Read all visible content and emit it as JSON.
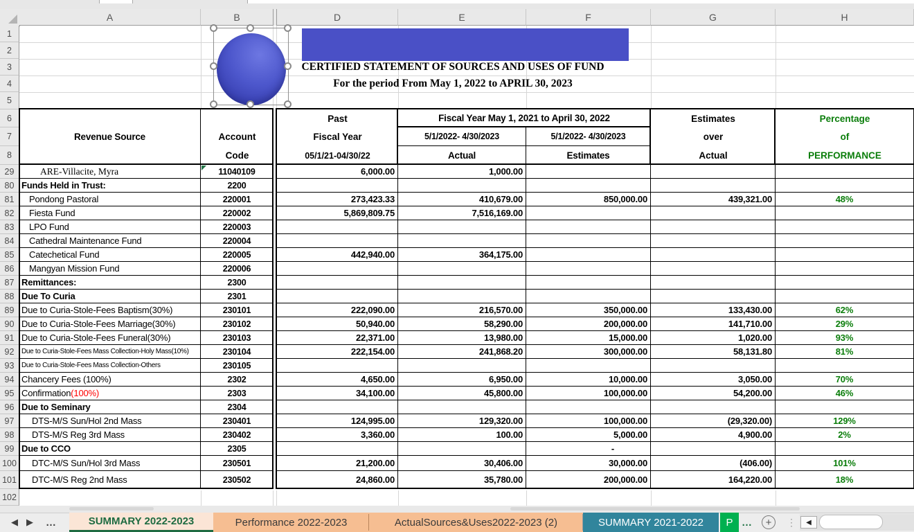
{
  "columns": [
    "A",
    "B",
    "D",
    "E",
    "F",
    "G",
    "H"
  ],
  "row_numbers": [
    "1",
    "2",
    "3",
    "4",
    "5",
    "6",
    "7",
    "8",
    "29",
    "80",
    "81",
    "82",
    "83",
    "84",
    "85",
    "86",
    "87",
    "88",
    "89",
    "90",
    "91",
    "92",
    "93",
    "94",
    "95",
    "96",
    "97",
    "98",
    "99",
    "100",
    "101",
    "102"
  ],
  "title": {
    "line1": "CERTIFIED STATEMENT OF SOURCES AND USES OF FUND",
    "line2": "For the period From May 1, 2022 to APRIL 30, 2023"
  },
  "table_header": {
    "revenue_source": "Revenue Source",
    "account": "Account",
    "code": "Code",
    "past": "Past",
    "fiscal_year": "Fiscal Year",
    "past_range": "05/1/21-04/30/22",
    "fy_span": "Fiscal Year  May 1, 2021 to April 30, 2022",
    "e_range": "5/1/2022- 4/30/2023",
    "e_label": "Actual",
    "f_range": "5/1/2022- 4/30/2023",
    "f_label": "Estimates",
    "g1": "Estimates",
    "g2": "over",
    "g3": "Actual",
    "h1": "Percentage",
    "h2": "of",
    "h3": "PERFORMANCE"
  },
  "rows": [
    {
      "n": "29",
      "name": "ARE-Villacite, Myra",
      "code": "11040109",
      "past": "6,000.00",
      "actual": "1,000.00",
      "style": "serif",
      "error_marker": true
    },
    {
      "n": "80",
      "name": "Funds Held in Trust:",
      "code": "2200",
      "style": "bold"
    },
    {
      "n": "81",
      "name": "Pondong Pastoral",
      "code": "220001",
      "past": "273,423.33",
      "actual": "410,679.00",
      "estimates": "850,000.00",
      "eoa": "439,321.00",
      "pct": "48%",
      "style": "indent"
    },
    {
      "n": "82",
      "name": "Fiesta Fund",
      "code": "220002",
      "past": "5,869,809.75",
      "actual": "7,516,169.00",
      "style": "indent"
    },
    {
      "n": "83",
      "name": "LPO Fund",
      "code": "220003",
      "style": "indent"
    },
    {
      "n": "84",
      "name": "Cathedral Maintenance Fund",
      "code": "220004",
      "style": "indent"
    },
    {
      "n": "85",
      "name": "Catechetical Fund",
      "code": "220005",
      "past": "442,940.00",
      "actual": "364,175.00",
      "style": "indent"
    },
    {
      "n": "86",
      "name": "Mangyan Mission Fund",
      "code": "220006",
      "style": "indent"
    },
    {
      "n": "87",
      "name": "Remittances:",
      "code": "2300",
      "style": "bold"
    },
    {
      "n": "88",
      "name": "Due To Curia",
      "code": "2301",
      "style": "bold"
    },
    {
      "n": "89",
      "name": "Due to Curia-Stole-Fees Baptism(30%)",
      "code": "230101",
      "past": "222,090.00",
      "actual": "216,570.00",
      "estimates": "350,000.00",
      "eoa": "133,430.00",
      "pct": "62%"
    },
    {
      "n": "90",
      "name": "Due to Curia-Stole-Fees Marriage(30%)",
      "code": "230102",
      "past": "50,940.00",
      "actual": "58,290.00",
      "estimates": "200,000.00",
      "eoa": "141,710.00",
      "pct": "29%"
    },
    {
      "n": "91",
      "name": "Due to Curia-Stole-Fees Funeral(30%)",
      "code": "230103",
      "past": "22,371.00",
      "actual": "13,980.00",
      "estimates": "15,000.00",
      "eoa": "1,020.00",
      "pct": "93%"
    },
    {
      "n": "92",
      "name": "Due to Curia-Stole-Fees Mass Collection-Holy Mass(10%)",
      "code": "230104",
      "past": "222,154.00",
      "actual": "241,868.20",
      "estimates": "300,000.00",
      "eoa": "58,131.80",
      "pct": "81%",
      "style": "small"
    },
    {
      "n": "93",
      "name": "Due to Curia-Stole-Fees Mass Collection-Others",
      "code": "230105",
      "style": "small"
    },
    {
      "n": "94",
      "name": "Chancery Fees (100%)",
      "code": "2302",
      "past": "4,650.00",
      "actual": "6,950.00",
      "estimates": "10,000.00",
      "eoa": "3,050.00",
      "pct": "70%"
    },
    {
      "n": "95",
      "name": "Confirmation ",
      "name_red": "(100%)",
      "code": "2303",
      "past": "34,100.00",
      "actual": "45,800.00",
      "estimates": "100,000.00",
      "eoa": "54,200.00",
      "pct": "46%"
    },
    {
      "n": "96",
      "name": "Due to Seminary",
      "code": "2304",
      "style": "bold"
    },
    {
      "n": "97",
      "name": "DTS-M/S Sun/Hol 2nd Mass",
      "code": "230401",
      "past": "124,995.00",
      "actual": "129,320.00",
      "estimates": "100,000.00",
      "eoa": "(29,320.00)",
      "pct": "129%",
      "style": "indent2"
    },
    {
      "n": "98",
      "name": "DTS-M/S Reg 3rd Mass",
      "code": "230402",
      "past": "3,360.00",
      "actual": "100.00",
      "estimates": "5,000.00",
      "eoa": "4,900.00",
      "pct": "2%",
      "style": "indent2"
    },
    {
      "n": "99",
      "name": "Due to CCO",
      "code": "2305",
      "estimates": "-",
      "style": "bold"
    },
    {
      "n": "100",
      "name": "DTC-M/S Sun/Hol 3rd Mass",
      "code": "230501",
      "past": "21,200.00",
      "actual": "30,406.00",
      "estimates": "30,000.00",
      "eoa": "(406.00)",
      "pct": "101%",
      "style": "indent2"
    },
    {
      "n": "101",
      "name": "DTC-M/S Reg 2nd Mass",
      "code": "230502",
      "past": "24,860.00",
      "actual": "35,780.00",
      "estimates": "200,000.00",
      "eoa": "164,220.00",
      "pct": "18%",
      "style": "indent2"
    },
    {
      "n": "102"
    }
  ],
  "tabs": [
    {
      "label": "SUMMARY 2022-2023",
      "state": "active",
      "bg": "#fbe5d6",
      "fg": "#1e6b41"
    },
    {
      "label": "Performance 2022-2023",
      "state": "normal",
      "bg": "#f6be92",
      "fg": "#3a3a3a"
    },
    {
      "label": "ActualSources&Uses2022-2023 (2)",
      "state": "normal",
      "bg": "#f6be92",
      "fg": "#3a3a3a"
    },
    {
      "label": "SUMMARY 2021-2022",
      "state": "normal",
      "bg": "#31859c",
      "fg": "#ffffff"
    },
    {
      "label": "P",
      "state": "truncated",
      "bg": "#00b050",
      "fg": "#ffffff"
    }
  ],
  "glyphs": {
    "nav_left": "◀",
    "nav_right": "▶",
    "overflow_left": "…",
    "overflow_right": "…",
    "add_sheet": "+",
    "kebab": "⋮",
    "scroll_left": "◀"
  },
  "colors": {
    "shape_fill": "#4a50c6",
    "green_text": "#0a7d0a",
    "red_text": "#ff0000",
    "active_tab_underline": "#1e6b41",
    "teal_tab": "#31859c",
    "green_sheet_tab": "#00b050",
    "peach_tab": "#f6be92"
  }
}
